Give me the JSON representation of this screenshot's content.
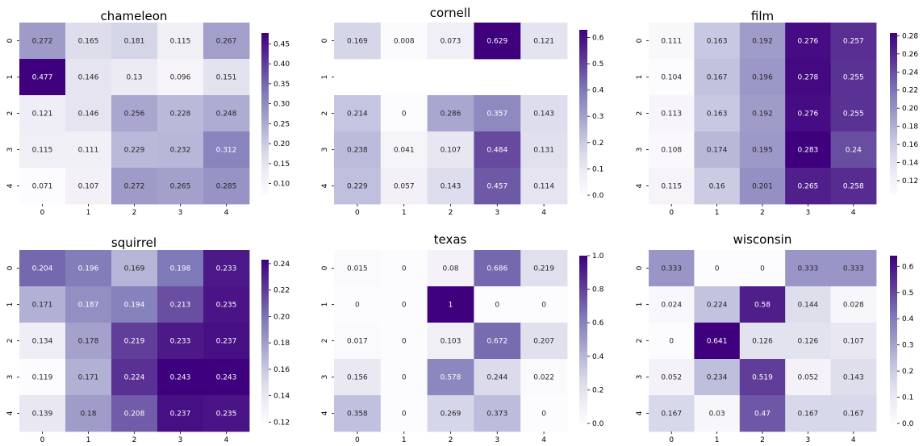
{
  "chart_data": [
    {
      "type": "heatmap",
      "title": "chameleon",
      "x_ticks": [
        "0",
        "1",
        "2",
        "3",
        "4"
      ],
      "y_ticks": [
        "0",
        "1",
        "2",
        "3",
        "4"
      ],
      "values": [
        [
          0.272,
          0.165,
          0.181,
          0.115,
          0.267
        ],
        [
          0.477,
          0.146,
          0.13,
          0.096,
          0.151
        ],
        [
          0.121,
          0.146,
          0.256,
          0.228,
          0.248
        ],
        [
          0.115,
          0.111,
          0.229,
          0.232,
          0.312
        ],
        [
          0.071,
          0.107,
          0.272,
          0.265,
          0.285
        ]
      ],
      "vmin": 0.071,
      "vmax": 0.477,
      "colorbar_ticks": [
        "0.10",
        "0.15",
        "0.20",
        "0.25",
        "0.30",
        "0.35",
        "0.40",
        "0.45"
      ],
      "colormap": "Purples"
    },
    {
      "type": "heatmap",
      "title": "cornell",
      "x_ticks": [
        "0",
        "1",
        "2",
        "3",
        "4"
      ],
      "y_ticks": [
        "0",
        "1",
        "2",
        "3",
        "4"
      ],
      "values": [
        [
          0.169,
          0.008,
          0.073,
          0.629,
          0.121
        ],
        [
          null,
          null,
          null,
          null,
          null
        ],
        [
          0.214,
          0,
          0.286,
          0.357,
          0.143
        ],
        [
          0.238,
          0.041,
          0.107,
          0.484,
          0.131
        ],
        [
          0.229,
          0.057,
          0.143,
          0.457,
          0.114
        ]
      ],
      "vmin": 0,
      "vmax": 0.629,
      "colorbar_ticks": [
        "0.0",
        "0.1",
        "0.2",
        "0.3",
        "0.4",
        "0.5",
        "0.6"
      ],
      "colormap": "Purples"
    },
    {
      "type": "heatmap",
      "title": "film",
      "x_ticks": [
        "0",
        "1",
        "2",
        "3",
        "4"
      ],
      "y_ticks": [
        "0",
        "1",
        "2",
        "3",
        "4"
      ],
      "values": [
        [
          0.111,
          0.163,
          0.192,
          0.276,
          0.257
        ],
        [
          0.104,
          0.167,
          0.196,
          0.278,
          0.255
        ],
        [
          0.113,
          0.163,
          0.192,
          0.276,
          0.255
        ],
        [
          0.108,
          0.174,
          0.195,
          0.283,
          0.24
        ],
        [
          0.115,
          0.16,
          0.201,
          0.265,
          0.258
        ]
      ],
      "vmin": 0.104,
      "vmax": 0.283,
      "colorbar_ticks": [
        "0.12",
        "0.14",
        "0.16",
        "0.18",
        "0.20",
        "0.22",
        "0.24",
        "0.26",
        "0.28"
      ],
      "colormap": "Purples"
    },
    {
      "type": "heatmap",
      "title": "squirrel",
      "x_ticks": [
        "0",
        "1",
        "2",
        "3",
        "4"
      ],
      "y_ticks": [
        "0",
        "1",
        "2",
        "3",
        "4"
      ],
      "values": [
        [
          0.204,
          0.196,
          0.169,
          0.198,
          0.233
        ],
        [
          0.171,
          0.187,
          0.194,
          0.213,
          0.235
        ],
        [
          0.134,
          0.178,
          0.219,
          0.233,
          0.237
        ],
        [
          0.119,
          0.171,
          0.224,
          0.243,
          0.243
        ],
        [
          0.139,
          0.18,
          0.208,
          0.237,
          0.235
        ]
      ],
      "vmin": 0.119,
      "vmax": 0.243,
      "colorbar_ticks": [
        "0.12",
        "0.14",
        "0.16",
        "0.18",
        "0.20",
        "0.22",
        "0.24"
      ],
      "colormap": "Purples"
    },
    {
      "type": "heatmap",
      "title": "texas",
      "x_ticks": [
        "0",
        "1",
        "2",
        "3",
        "4"
      ],
      "y_ticks": [
        "0",
        "1",
        "2",
        "3",
        "4"
      ],
      "values": [
        [
          0.015,
          0,
          0.08,
          0.686,
          0.219
        ],
        [
          0,
          0,
          1,
          0,
          0
        ],
        [
          0.017,
          0,
          0.103,
          0.672,
          0.207
        ],
        [
          0.156,
          0,
          0.578,
          0.244,
          0.022
        ],
        [
          0.358,
          0,
          0.269,
          0.373,
          0
        ]
      ],
      "vmin": 0,
      "vmax": 1,
      "colorbar_ticks": [
        "0.0",
        "0.2",
        "0.4",
        "0.6",
        "0.8",
        "1.0"
      ],
      "colormap": "Purples"
    },
    {
      "type": "heatmap",
      "title": "wisconsin",
      "x_ticks": [
        "0",
        "1",
        "2",
        "3",
        "4"
      ],
      "y_ticks": [
        "0",
        "1",
        "2",
        "3",
        "4"
      ],
      "values": [
        [
          0.333,
          0,
          0,
          0.333,
          0.333
        ],
        [
          0.024,
          0.224,
          0.58,
          0.144,
          0.028
        ],
        [
          0,
          0.641,
          0.126,
          0.126,
          0.107
        ],
        [
          0.052,
          0.234,
          0.519,
          0.052,
          0.143
        ],
        [
          0.167,
          0.03,
          0.47,
          0.167,
          0.167
        ]
      ],
      "vmin": 0,
      "vmax": 0.641,
      "colorbar_ticks": [
        "0.0",
        "0.1",
        "0.2",
        "0.3",
        "0.4",
        "0.5",
        "0.6"
      ],
      "colormap": "Purples"
    }
  ]
}
